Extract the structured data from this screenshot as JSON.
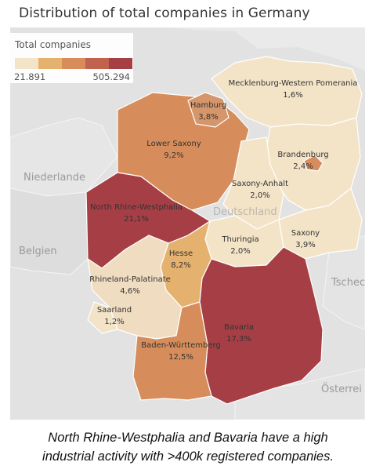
{
  "title": "Distribution of total companies in Germany",
  "legend": {
    "title": "Total companies",
    "min": "21.891",
    "max": "505.294",
    "colors": [
      "#f3e4c8",
      "#e5b16f",
      "#d68d5b",
      "#c0624e",
      "#a63e45"
    ]
  },
  "background_labels": {
    "netherlands": "Niederlande",
    "belgium": "Belgien",
    "czech": "Tschech Rep",
    "austria": "Österrei",
    "germany_watermark": "Deutschland"
  },
  "regions": [
    {
      "id": "mecklenburg",
      "name": "Mecklenburg-Western Pomerania",
      "value": "1,6%",
      "color": "#f3e4c8"
    },
    {
      "id": "hamburg",
      "name": "Hamburg",
      "value": "3,8%",
      "color": "#d4966a"
    },
    {
      "id": "lower-saxony",
      "name": "Lower Saxony",
      "value": "9,2%",
      "color": "#d68d5b"
    },
    {
      "id": "brandenburg",
      "name": "Brandenburg",
      "value": "2,4%",
      "color": "#f3e4c8"
    },
    {
      "id": "saxony-anhalt",
      "name": "Saxony-Anhalt",
      "value": "2,0%",
      "color": "#f3e4c8"
    },
    {
      "id": "nrw",
      "name": "North Rhine-Westphalia",
      "value": "21,1%",
      "color": "#a63e45"
    },
    {
      "id": "thuringia",
      "name": "Thuringia",
      "value": "2,0%",
      "color": "#f3e4c8"
    },
    {
      "id": "saxony",
      "name": "Saxony",
      "value": "3,9%",
      "color": "#f3e4c8"
    },
    {
      "id": "hesse",
      "name": "Hesse",
      "value": "8,2%",
      "color": "#e5b16f"
    },
    {
      "id": "rhineland-palatinate",
      "name": "Rhineland-Palatinate",
      "value": "4,6%",
      "color": "#f0dcc0"
    },
    {
      "id": "saarland",
      "name": "Saarland",
      "value": "1,2%",
      "color": "#f3e4c8"
    },
    {
      "id": "bavaria",
      "name": "Bavaria",
      "value": "17,3%",
      "color": "#a63e45"
    },
    {
      "id": "baden-wurttemberg",
      "name": "Baden-Württemberg",
      "value": "12,5%",
      "color": "#d68d5b"
    }
  ],
  "caption": {
    "line1": "North Rhine-Westphalia and Bavaria have a high",
    "line2": "industrial activity with >400k registered companies."
  }
}
